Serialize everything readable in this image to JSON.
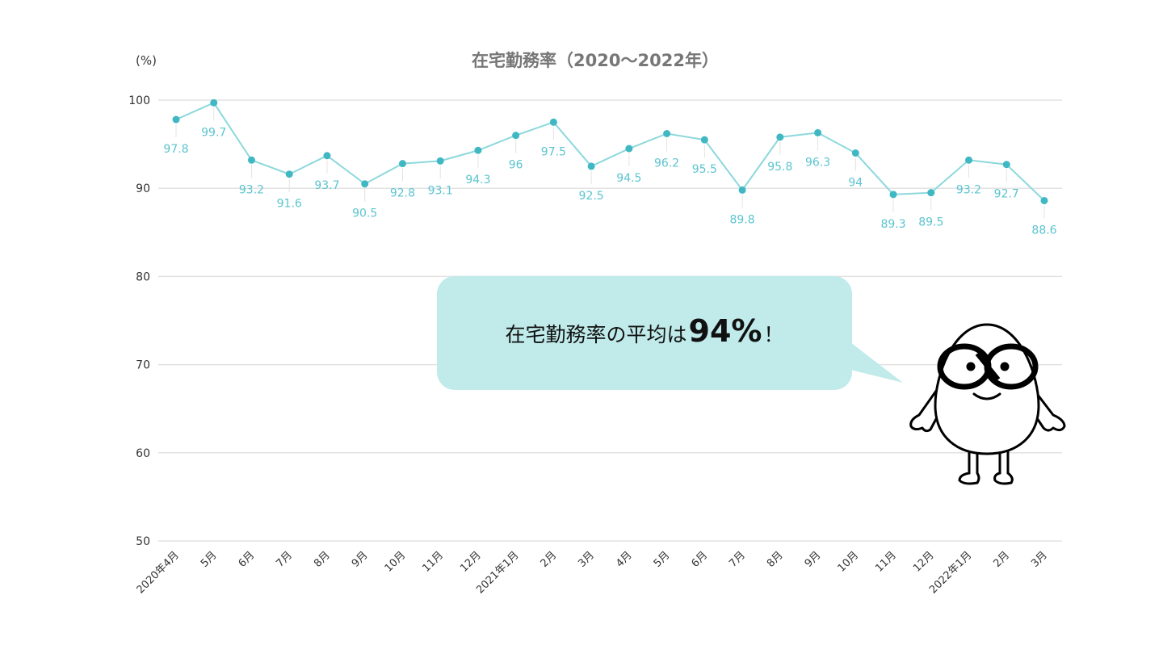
{
  "chart_data": {
    "type": "line",
    "title": "在宅勤務率（2020～2022年）",
    "yunit": "(%)",
    "ylim": [
      50,
      100
    ],
    "yticks": [
      50,
      60,
      70,
      80,
      90,
      100
    ],
    "grid": true,
    "categories": [
      "2020年4月",
      "5月",
      "6月",
      "7月",
      "8月",
      "9月",
      "10月",
      "11月",
      "12月",
      "2021年1月",
      "2月",
      "3月",
      "4月",
      "5月",
      "6月",
      "7月",
      "8月",
      "9月",
      "10月",
      "11月",
      "12月",
      "2022年1月",
      "2月",
      "3月"
    ],
    "series": [
      {
        "values": [
          97.8,
          99.7,
          93.2,
          91.6,
          93.7,
          90.5,
          92.8,
          93.1,
          94.3,
          96,
          97.5,
          92.5,
          94.5,
          96.2,
          95.5,
          89.8,
          95.8,
          96.3,
          94,
          89.3,
          89.5,
          93.2,
          92.7,
          88.6
        ]
      }
    ],
    "label_position": [
      "below",
      "below",
      "below",
      "below",
      "below",
      "below",
      "below",
      "below",
      "below",
      "below",
      "below",
      "below",
      "below",
      "below",
      "below",
      "below",
      "below",
      "below",
      "below",
      "below",
      "below",
      "below",
      "below",
      "below"
    ]
  },
  "colors": {
    "line": "#8dd8dc",
    "marker": "#3fb8c3",
    "data_label": "#5bc4cf",
    "grid": "#e2e2e2",
    "axis_text": "#333333",
    "title": "#777777",
    "bubble": "#c0ebea"
  },
  "callout": {
    "prefix": "在宅勤務率の平均は",
    "value": "94%",
    "suffix": "！"
  },
  "mascot": {
    "icon": "egg-character-with-glasses-icon"
  }
}
